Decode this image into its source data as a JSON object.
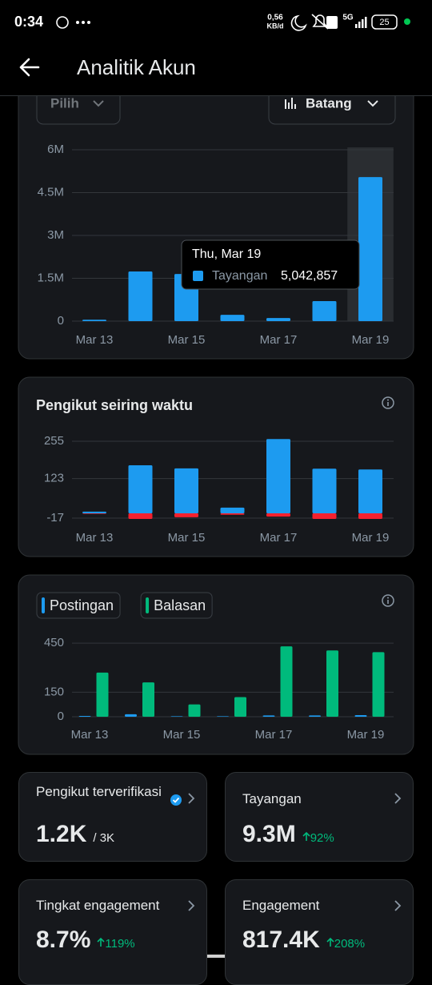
{
  "status_bar": {
    "time": "0:34",
    "net_speed": "0,56",
    "net_unit": "KB/d",
    "network": "5G",
    "battery": "25"
  },
  "header": {
    "title": "Analitik Akun"
  },
  "controls": {
    "range": "Pilih",
    "chart_type": "Batang"
  },
  "chart_data": [
    {
      "type": "bar",
      "categories": [
        "Mar 13",
        null,
        "Mar 15",
        null,
        "Mar 17",
        null,
        "Mar 19"
      ],
      "series": [
        {
          "name": "Tayangan",
          "color": "#1d9bf0",
          "values": [
            50000,
            1740000,
            1650000,
            220000,
            110000,
            700000,
            5042857
          ],
          "value_labels": [
            null,
            null,
            null,
            null,
            null,
            null,
            "5,042,857"
          ]
        }
      ],
      "tooltip_title": "Thu, Mar 19",
      "ylim": [
        0,
        6000000
      ],
      "yticks": [
        0,
        {
          "value": 1500000,
          "label": "1.5M"
        },
        {
          "value": 3000000,
          "label": "3M"
        },
        {
          "value": 4500000,
          "label": "4.5M"
        },
        {
          "value": 6000000,
          "label": "6M"
        }
      ],
      "grid": true
    },
    {
      "type": "bar",
      "title": "Pengikut seiring waktu",
      "barmode": "relative",
      "categories": [
        "Mar 13",
        null,
        "Mar 15",
        null,
        "Mar 17",
        null,
        "Mar 19"
      ],
      "series": [
        {
          "color": "#1d9bf0",
          "values": [
            6,
            170,
            159,
            20,
            263,
            158,
            155
          ]
        },
        {
          "color": "#f4212e",
          "values": [
            -2,
            -20,
            -14,
            -5,
            -12,
            -20,
            -20
          ]
        }
      ],
      "ylim": [
        -20,
        265
      ],
      "yticks": [
        -17,
        123,
        255
      ],
      "grid": true
    },
    {
      "type": "bar",
      "barmode": "group",
      "legend": "top-left",
      "categories": [
        "Mar 13",
        null,
        "Mar 15",
        null,
        "Mar 17",
        null,
        "Mar 19"
      ],
      "series": [
        {
          "name": "Postingan",
          "color": "#1d9bf0",
          "values": [
            5,
            15,
            3,
            3,
            8,
            8,
            10
          ]
        },
        {
          "name": "Balasan",
          "color": "#00ba7c",
          "values": [
            270,
            210,
            75,
            120,
            430,
            405,
            395
          ]
        }
      ],
      "ylim": [
        0,
        470
      ],
      "yticks": [
        0,
        150,
        450
      ],
      "grid": true
    }
  ],
  "cards": [
    {
      "title": "Pengikut terverifikasi",
      "value": "1.2K",
      "total": "/ 3K"
    },
    {
      "title": "Tayangan",
      "value": "9.3M",
      "change": "92%"
    },
    {
      "title": "Tingkat engagement",
      "value": "8.7%",
      "change": "119%"
    },
    {
      "title": "Engagement",
      "value": "817.4K",
      "change": "208%"
    }
  ]
}
